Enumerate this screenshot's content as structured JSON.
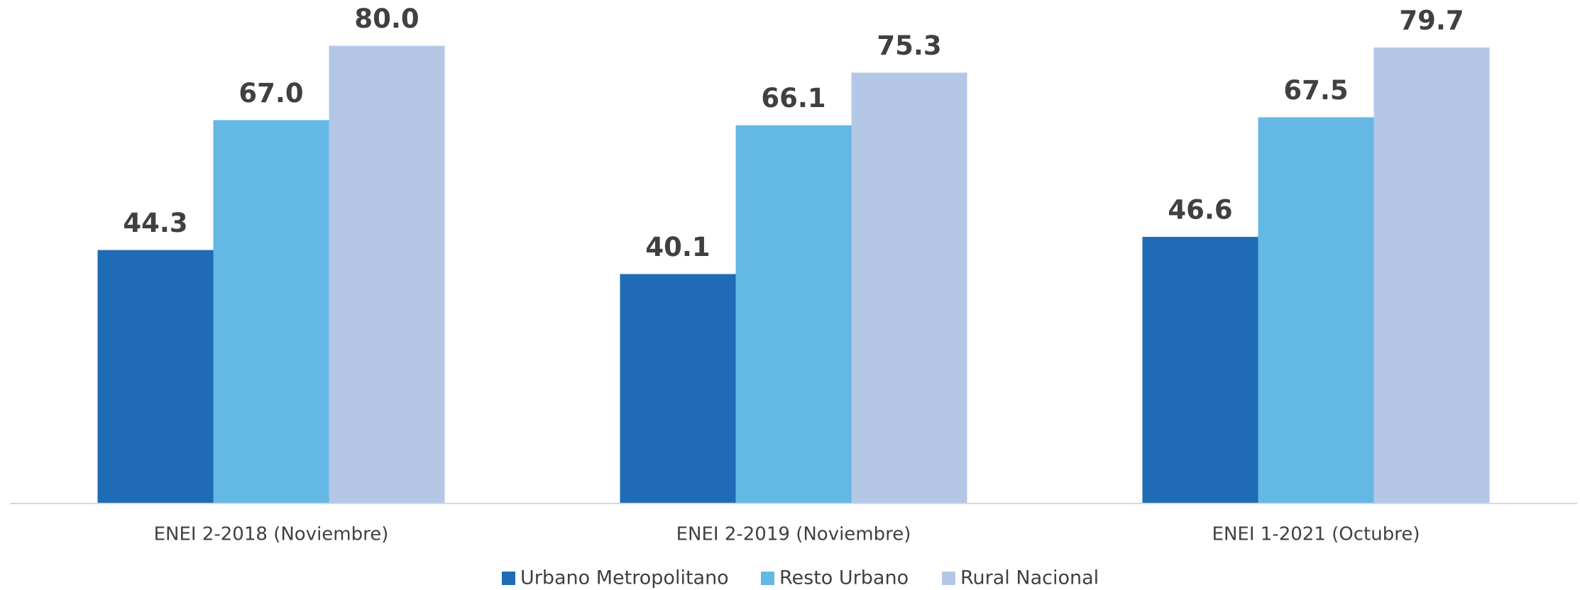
{
  "chart_data": {
    "type": "bar",
    "categories": [
      "ENEI 2-2018 (Noviembre)",
      "ENEI 2-2019 (Noviembre)",
      "ENEI 1-2021 (Octubre)"
    ],
    "series": [
      {
        "name": "Urbano Metropolitano",
        "color": "#1f6bb5",
        "values": [
          44.3,
          40.1,
          46.6
        ],
        "value_labels": [
          "44.3",
          "40.1",
          "46.6"
        ]
      },
      {
        "name": "Resto Urbano",
        "color": "#63b8e4",
        "values": [
          67.0,
          66.1,
          67.5
        ],
        "value_labels": [
          "67.0",
          "66.1",
          "67.5"
        ]
      },
      {
        "name": "Rural Nacional",
        "color": "#b4c7e7",
        "values": [
          80.0,
          75.3,
          79.7
        ],
        "value_labels": [
          "80.0",
          "75.3",
          "79.7"
        ]
      }
    ],
    "ylim": [
      0,
      88
    ],
    "legend": "bottom"
  }
}
